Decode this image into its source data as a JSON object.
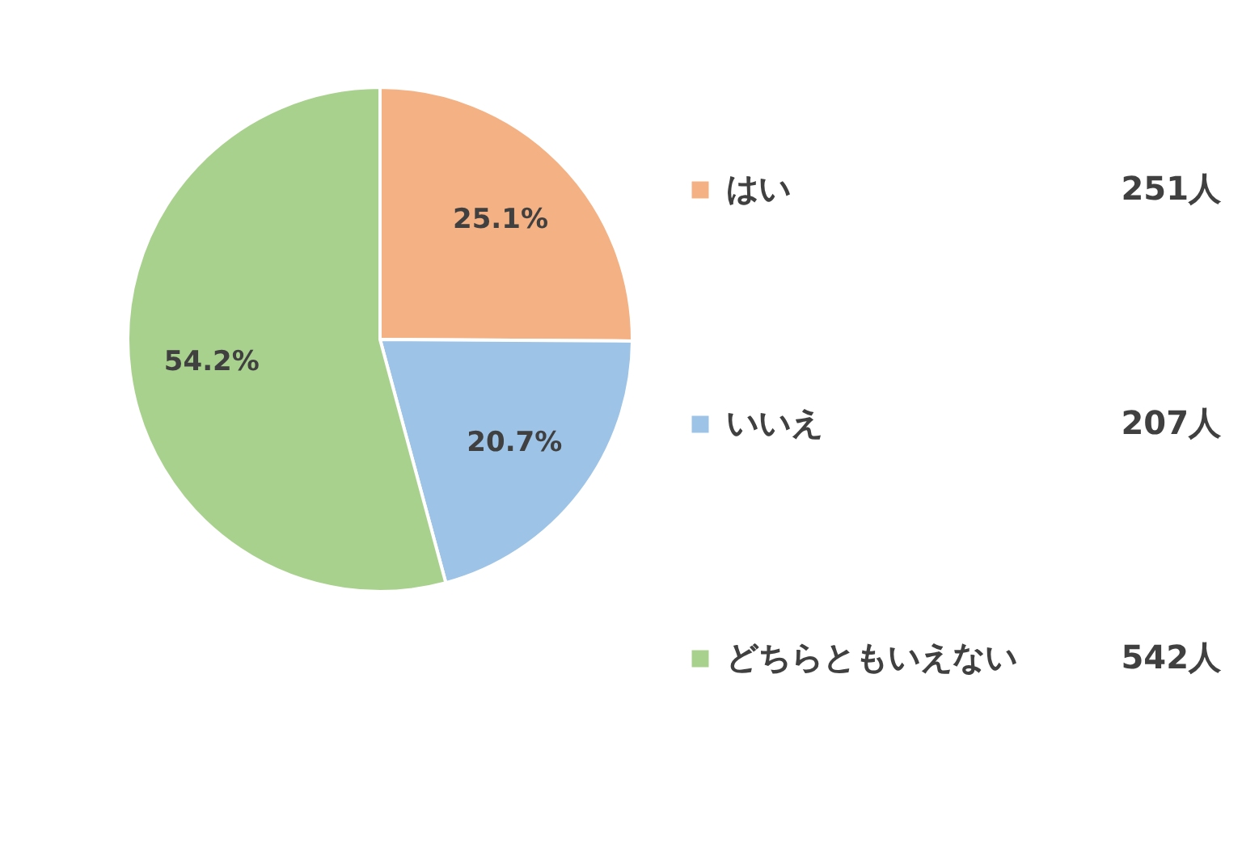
{
  "chart_data": {
    "type": "pie",
    "categories": [
      "はい",
      "いいえ",
      "どちらともいえない"
    ],
    "values": [
      25.1,
      20.7,
      54.2
    ],
    "colors": [
      "#f4b183",
      "#9dc3e6",
      "#a9d18e"
    ],
    "value_labels": [
      "25.1%",
      "20.7%",
      "54.2%"
    ],
    "annotations": [
      "251人",
      "207人",
      "542人"
    ],
    "legend": "right"
  }
}
